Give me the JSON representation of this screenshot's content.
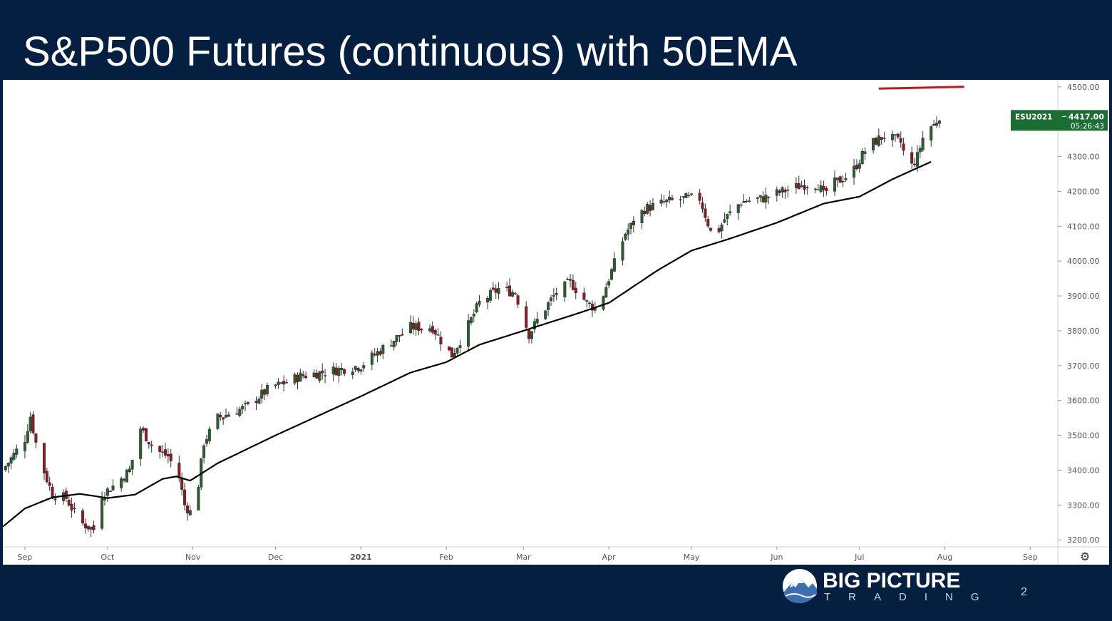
{
  "slide": {
    "title": "S&P500 Futures (continuous) with 50EMA",
    "page_number": "2",
    "logo": {
      "main": "BIG PICTURE",
      "sub": "TRADING"
    }
  },
  "colors": {
    "background": "#041f3f",
    "up_candle": "#2c5e34",
    "down_candle": "#8b1c24",
    "ema": "#000000",
    "resistance": "#c8161d",
    "price_tag": "#1b6d34"
  },
  "chart_data": {
    "type": "candlestick",
    "symbol": "ESU2021",
    "last_price": "4417.00",
    "countdown": "05:26:43",
    "ylim": [
      3180,
      4520
    ],
    "y_ticks": [
      "4500.00",
      "4400.00",
      "4300.00",
      "4200.00",
      "4100.00",
      "4000.00",
      "3900.00",
      "3800.00",
      "3700.00",
      "3600.00",
      "3500.00",
      "3400.00",
      "3300.00",
      "3200.00"
    ],
    "x_ticks": [
      "Sep",
      "Oct",
      "Nov",
      "Dec",
      "2021",
      "Feb",
      "Mar",
      "Apr",
      "May",
      "Jun",
      "Jul",
      "Aug",
      "Sep"
    ],
    "x_tick_days": [
      0,
      30,
      61,
      91,
      122,
      153,
      181,
      212,
      242,
      273,
      303,
      334,
      365
    ],
    "x_range_days": [
      -8,
      375
    ],
    "resistance_line": {
      "value_start": 4495,
      "value_end": 4500,
      "start_day": 310,
      "end_day": 341
    },
    "ema_period": 50,
    "ema_keypoints": [
      [
        -8,
        3238
      ],
      [
        0,
        3290
      ],
      [
        10,
        3322
      ],
      [
        20,
        3332
      ],
      [
        30,
        3320
      ],
      [
        40,
        3330
      ],
      [
        50,
        3375
      ],
      [
        55,
        3382
      ],
      [
        60,
        3370
      ],
      [
        70,
        3420
      ],
      [
        91,
        3500
      ],
      [
        122,
        3612
      ],
      [
        140,
        3680
      ],
      [
        153,
        3710
      ],
      [
        165,
        3760
      ],
      [
        181,
        3800
      ],
      [
        200,
        3848
      ],
      [
        212,
        3880
      ],
      [
        230,
        3975
      ],
      [
        242,
        4030
      ],
      [
        255,
        4062
      ],
      [
        273,
        4110
      ],
      [
        290,
        4165
      ],
      [
        303,
        4185
      ],
      [
        315,
        4235
      ],
      [
        329,
        4285
      ]
    ],
    "price_keypoints": [
      [
        -8,
        3400
      ],
      [
        0,
        3490
      ],
      [
        2,
        3555
      ],
      [
        5,
        3440
      ],
      [
        10,
        3330
      ],
      [
        15,
        3320
      ],
      [
        20,
        3250
      ],
      [
        25,
        3230
      ],
      [
        28,
        3330
      ],
      [
        33,
        3360
      ],
      [
        38,
        3400
      ],
      [
        40,
        3460
      ],
      [
        42,
        3520
      ],
      [
        47,
        3460
      ],
      [
        52,
        3440
      ],
      [
        56,
        3380
      ],
      [
        58,
        3300
      ],
      [
        60,
        3280
      ],
      [
        62,
        3300
      ],
      [
        65,
        3480
      ],
      [
        70,
        3550
      ],
      [
        80,
        3580
      ],
      [
        88,
        3630
      ],
      [
        100,
        3670
      ],
      [
        115,
        3690
      ],
      [
        122,
        3700
      ],
      [
        130,
        3750
      ],
      [
        140,
        3810
      ],
      [
        148,
        3810
      ],
      [
        152,
        3760
      ],
      [
        155,
        3730
      ],
      [
        160,
        3800
      ],
      [
        165,
        3880
      ],
      [
        172,
        3920
      ],
      [
        178,
        3910
      ],
      [
        183,
        3790
      ],
      [
        186,
        3830
      ],
      [
        192,
        3900
      ],
      [
        198,
        3940
      ],
      [
        204,
        3880
      ],
      [
        208,
        3860
      ],
      [
        212,
        3950
      ],
      [
        218,
        4080
      ],
      [
        225,
        4150
      ],
      [
        233,
        4170
      ],
      [
        240,
        4180
      ],
      [
        242,
        4180
      ],
      [
        245,
        4180
      ],
      [
        250,
        4060
      ],
      [
        254,
        4120
      ],
      [
        260,
        4170
      ],
      [
        268,
        4180
      ],
      [
        275,
        4200
      ],
      [
        283,
        4220
      ],
      [
        288,
        4220
      ],
      [
        290,
        4190
      ],
      [
        293,
        4220
      ],
      [
        300,
        4250
      ],
      [
        306,
        4330
      ],
      [
        312,
        4360
      ],
      [
        318,
        4340
      ],
      [
        321,
        4260
      ],
      [
        324,
        4300
      ],
      [
        327,
        4380
      ],
      [
        330,
        4390
      ],
      [
        332,
        4417
      ]
    ]
  }
}
